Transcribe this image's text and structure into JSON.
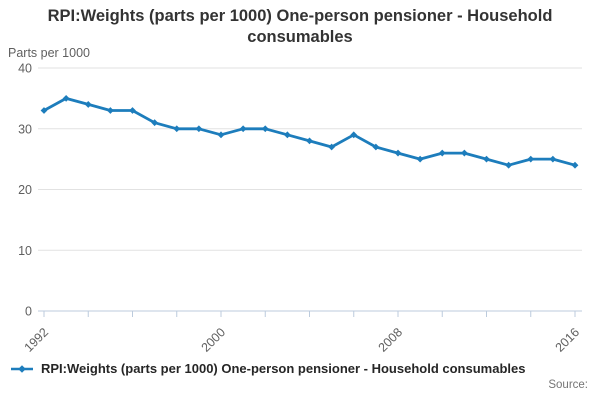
{
  "header": {
    "title": "RPI:Weights (parts per 1000) One-person pensioner - Household consumables"
  },
  "y_axis": {
    "unit_label": "Parts per 1000",
    "tick_labels": [
      "0",
      "10",
      "20",
      "30",
      "40"
    ]
  },
  "x_axis": {
    "tick_labels_shown": [
      "1992",
      "2000",
      "2008",
      "2016"
    ]
  },
  "legend": {
    "label": "RPI:Weights (parts per 1000) One-person pensioner - Household consumables"
  },
  "footer": {
    "source_label": "Source:"
  },
  "colors": {
    "line": "#1d7dbc",
    "grid": "#e2e2e2",
    "axis": "#bccbdd",
    "tick_text": "#5f5f5f",
    "title_text": "#333333"
  },
  "chart_data": {
    "type": "line",
    "title": "RPI:Weights (parts per 1000) One-person pensioner - Household consumables",
    "xlabel": "",
    "ylabel": "Parts per 1000",
    "x": [
      1992,
      1993,
      1994,
      1995,
      1996,
      1997,
      1998,
      1999,
      2000,
      2001,
      2002,
      2003,
      2004,
      2005,
      2006,
      2007,
      2008,
      2009,
      2010,
      2011,
      2012,
      2013,
      2014,
      2015,
      2016
    ],
    "values": [
      33,
      35,
      34,
      33,
      33,
      31,
      30,
      30,
      29,
      30,
      30,
      29,
      28,
      27,
      29,
      27,
      26,
      25,
      26,
      26,
      25,
      24,
      25,
      25,
      24
    ],
    "series_name": "RPI:Weights (parts per 1000) One-person pensioner - Household consumables",
    "xlim": [
      1992,
      2016
    ],
    "ylim": [
      0,
      40
    ],
    "yticks": [
      0,
      10,
      20,
      30,
      40
    ],
    "xticks": [
      1992,
      1994,
      1996,
      1998,
      2000,
      2002,
      2004,
      2006,
      2008,
      2010,
      2012,
      2014,
      2016
    ],
    "xticks_labelled": [
      1992,
      2000,
      2008,
      2016
    ],
    "grid": true,
    "legend_position": "bottom",
    "marker": "diamond"
  }
}
